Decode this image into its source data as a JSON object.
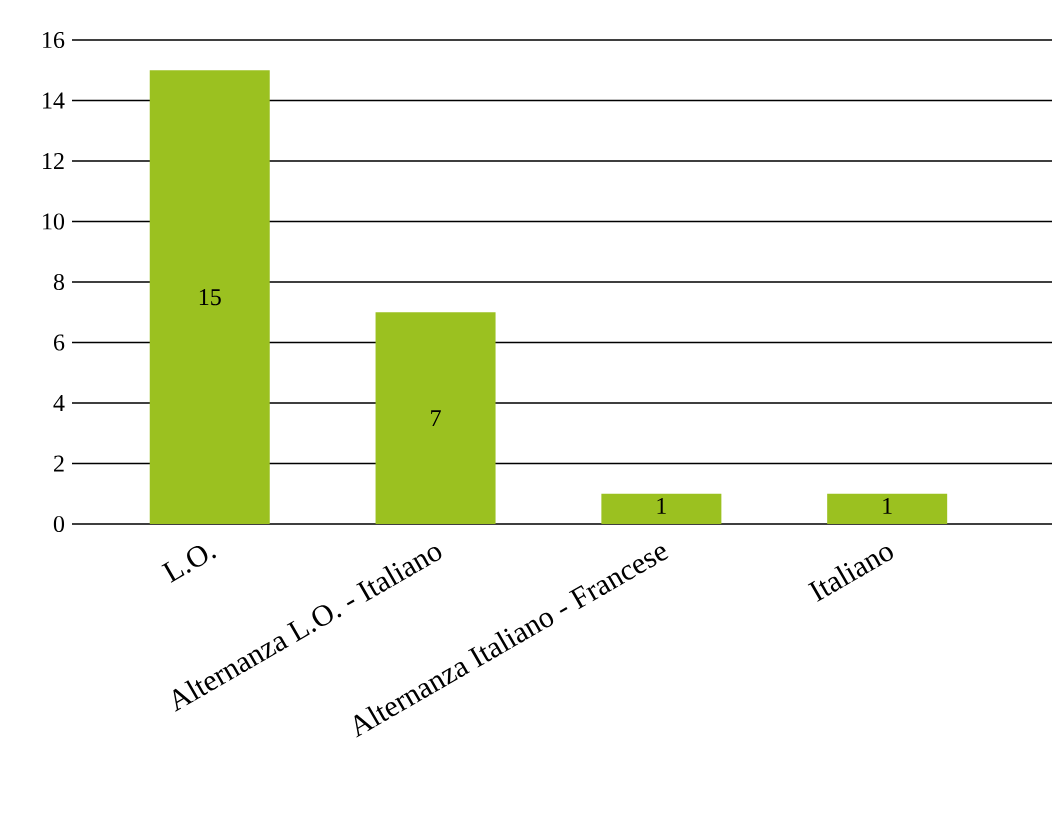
{
  "chart_data": {
    "type": "bar",
    "categories": [
      "L.O.",
      "Alternanza L.O. - Italiano",
      "Alternanza Italiano - Francese",
      "Italiano"
    ],
    "values": [
      15,
      7,
      1,
      1
    ],
    "color": "#9bc120",
    "ylim": [
      0,
      16
    ],
    "yticks": [
      0,
      2,
      4,
      6,
      8,
      10,
      12,
      14,
      16
    ],
    "grid": "y",
    "data_labels": true
  }
}
